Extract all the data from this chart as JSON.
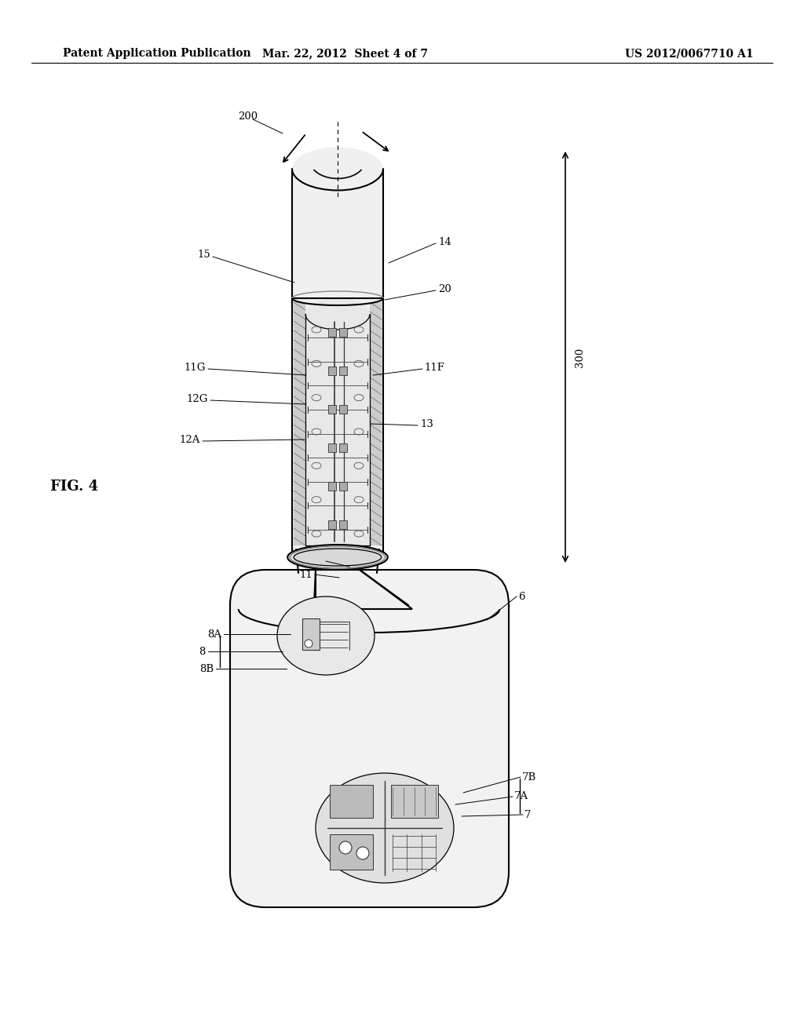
{
  "bg_color": "#ffffff",
  "header_left": "Patent Application Publication",
  "header_mid": "Mar. 22, 2012  Sheet 4 of 7",
  "header_right": "US 2012/0067710 A1",
  "fig_label": "FIG. 4",
  "header_fontsize": 10,
  "fig_label_fontsize": 13,
  "lw_main": 1.5,
  "lw_inner": 0.9,
  "lw_thin": 0.6
}
